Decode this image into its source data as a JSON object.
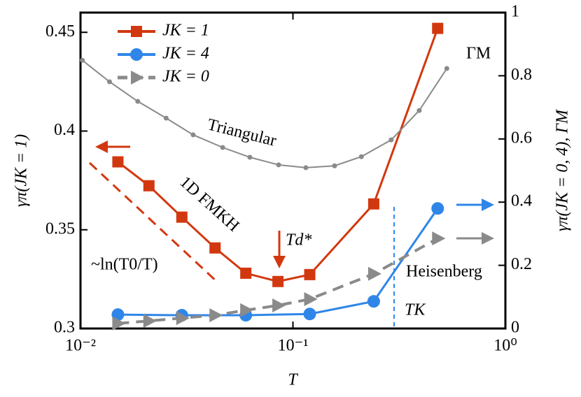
{
  "chart_data": {
    "type": "line",
    "xlabel": "T",
    "ylabel": "γπ(JK = 1)",
    "y2label": "γπ(JK = 0, 4), ΓM",
    "xscale": "log",
    "xlim": [
      0.01,
      1
    ],
    "xticks": [
      {
        "value": 0.01,
        "label": "10⁻²"
      },
      {
        "value": 0.1,
        "label": "10⁻¹"
      },
      {
        "value": 1,
        "label": "10⁰"
      }
    ],
    "ylim": [
      0.3,
      0.46
    ],
    "yticks": [
      0.3,
      0.35,
      0.4,
      0.45
    ],
    "y2lim": [
      0,
      1
    ],
    "y2ticks": [
      0,
      0.2,
      0.4,
      0.6,
      0.8,
      1
    ],
    "legend": "upper left",
    "series": [
      {
        "name": "JK = 1",
        "color": "#d2380f",
        "marker": "square",
        "style": "solid",
        "axis": "y",
        "x": [
          0.015,
          0.021,
          0.03,
          0.043,
          0.06,
          0.085,
          0.12,
          0.24,
          0.48
        ],
        "values": [
          0.3844,
          0.3723,
          0.3564,
          0.3408,
          0.328,
          0.3238,
          0.3273,
          0.3631,
          0.452
        ]
      },
      {
        "name": "JK = 4",
        "color": "#2f86e8",
        "marker": "circle",
        "style": "solid",
        "axis": "y2",
        "x": [
          0.015,
          0.03,
          0.06,
          0.12,
          0.24,
          0.48
        ],
        "values": [
          0.044,
          0.042,
          0.042,
          0.046,
          0.086,
          0.38
        ]
      },
      {
        "name": "JK = 0",
        "color": "#8a8a8a",
        "marker": "triangle",
        "style": "dashed",
        "axis": "y2",
        "x": [
          0.015,
          0.021,
          0.03,
          0.043,
          0.06,
          0.085,
          0.12,
          0.24,
          0.48
        ],
        "values": [
          0.016,
          0.024,
          0.033,
          0.042,
          0.058,
          0.073,
          0.093,
          0.173,
          0.285
        ]
      },
      {
        "color": "#8a8a8a",
        "marker": "dot",
        "style": "thin",
        "axis": "y2",
        "x": [
          0.0102,
          0.0137,
          0.0186,
          0.0253,
          0.0339,
          0.0467,
          0.0627,
          0.0856,
          0.115,
          0.157,
          0.21,
          0.29,
          0.393,
          0.53
        ],
        "values": [
          0.849,
          0.781,
          0.719,
          0.666,
          0.613,
          0.573,
          0.542,
          0.518,
          0.509,
          0.515,
          0.544,
          0.597,
          0.69,
          0.823
        ]
      }
    ],
    "annotations": [
      "Triangular",
      "1D FMKH",
      "~ln(T0/T)",
      "Td*",
      "Heisenberg",
      "TK",
      "ΓM"
    ]
  }
}
